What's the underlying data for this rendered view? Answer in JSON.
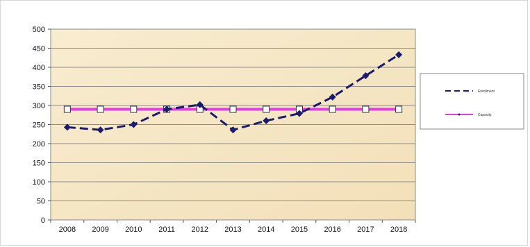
{
  "chart_data": {
    "type": "line",
    "title": "",
    "xlabel": "",
    "ylabel": "",
    "ylim": [
      0,
      500
    ],
    "yticks": [
      0,
      50,
      100,
      150,
      200,
      250,
      300,
      350,
      400,
      450,
      500
    ],
    "categories": [
      "2008",
      "2009",
      "2010",
      "2011",
      "2012",
      "2013",
      "2014",
      "2015",
      "2016",
      "2017",
      "2018"
    ],
    "grid": true,
    "legend_position": "right",
    "series": [
      {
        "name": "Enrollment",
        "values": [
          243,
          236,
          250,
          290,
          302,
          236,
          260,
          279,
          322,
          378,
          433
        ],
        "color": "#1a1a6e",
        "style": "dashed",
        "marker": "diamond"
      },
      {
        "name": "Capacity",
        "values": [
          290,
          290,
          290,
          290,
          290,
          290,
          290,
          290,
          290,
          290,
          290
        ],
        "color": "#e040e0",
        "style": "solid",
        "marker": "square"
      }
    ],
    "plot_background": "#f5e6c4"
  }
}
